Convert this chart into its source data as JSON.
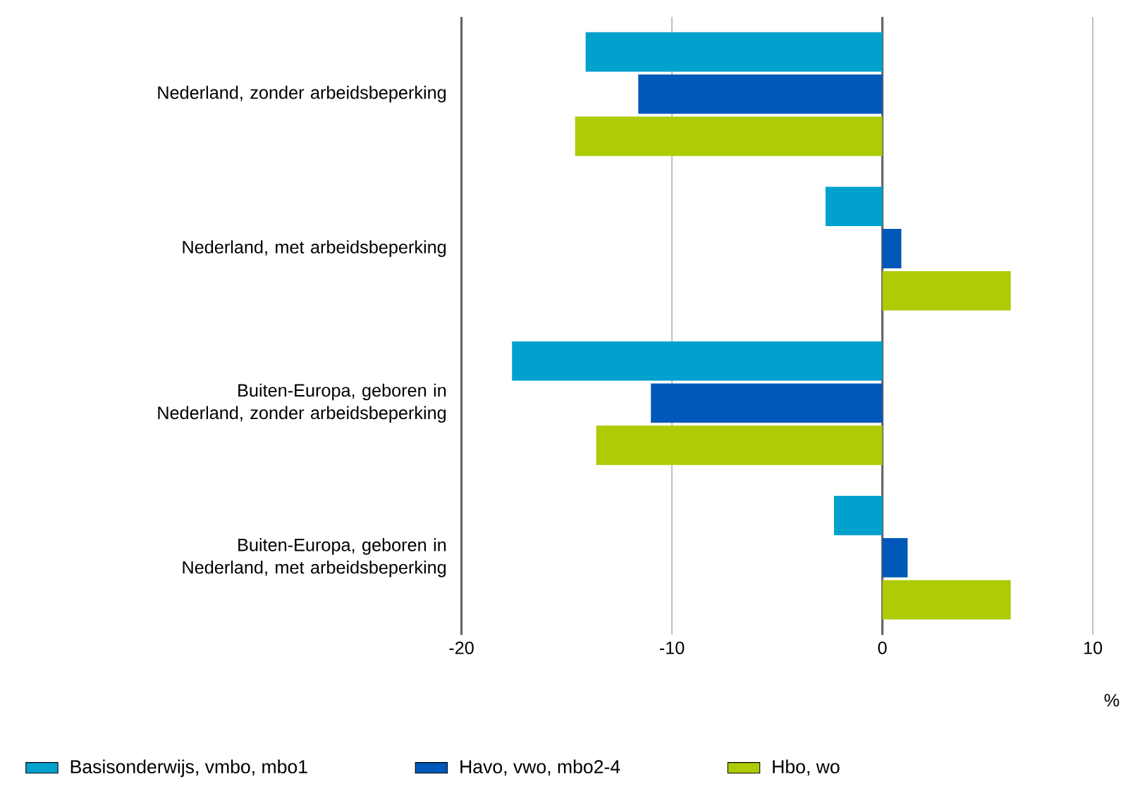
{
  "chart_data": {
    "type": "bar",
    "orientation": "horizontal",
    "categories": [
      "Nederland, zonder arbeidsbeperking",
      "Nederland, met arbeidsbeperking",
      "Buiten-Europa, geboren in Nederland, zonder arbeidsbeperking",
      "Buiten-Europa, geboren in Nederland, met arbeidsbeperking"
    ],
    "series": [
      {
        "name": "Basisonderwijs, vmbo, mbo1",
        "color": "#00a1cd",
        "values": [
          -14.1,
          -2.7,
          -17.6,
          -2.3
        ]
      },
      {
        "name": "Havo, vwo, mbo2-4",
        "color": "#0058b8",
        "values": [
          -11.6,
          0.9,
          -11.0,
          1.2
        ]
      },
      {
        "name": "Hbo, wo",
        "color": "#afcb05",
        "values": [
          -14.6,
          6.1,
          -13.6,
          6.1
        ]
      }
    ],
    "xlabel": "%",
    "xlim": [
      -20,
      10
    ],
    "xticks": [
      -20,
      -10,
      0,
      10
    ],
    "grid": "x",
    "legend": "bottom"
  }
}
